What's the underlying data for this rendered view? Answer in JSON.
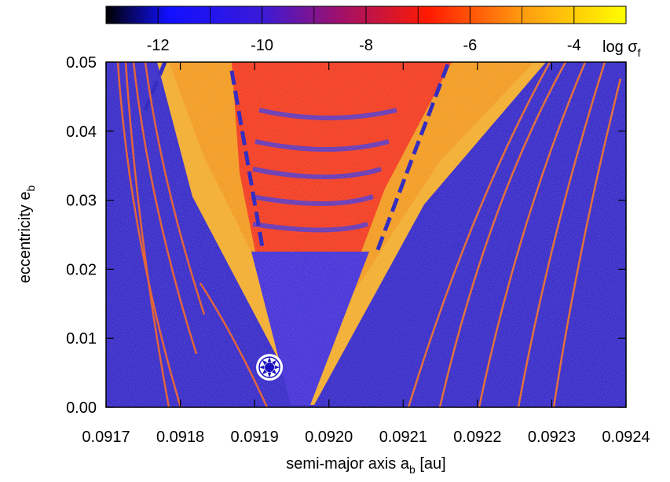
{
  "chart_data": {
    "type": "heatmap",
    "title": "",
    "xlabel": "semi-major axis a",
    "xlabel_sub": "b",
    "xlabel_unit": " [au]",
    "ylabel": "eccentricity e",
    "ylabel_sub": "b",
    "xlim": [
      0.0917,
      0.0924
    ],
    "ylim": [
      0.0,
      0.05
    ],
    "x_ticks": [
      "0.0917",
      "0.0918",
      "0.0919",
      "0.0920",
      "0.0921",
      "0.0922",
      "0.0923",
      "0.0924"
    ],
    "y_ticks": [
      "0.00",
      "0.01",
      "0.02",
      "0.03",
      "0.04",
      "0.05"
    ],
    "colorbar": {
      "label": "log σ",
      "label_sub": "f",
      "range": [
        -13,
        -3
      ],
      "ticks": [
        "-12",
        "-10",
        "-8",
        "-6",
        "-4"
      ],
      "tick_values": [
        -12,
        -10,
        -8,
        -6,
        -4
      ],
      "colors": [
        "#000000",
        "#0000ff",
        "#ff0000",
        "#ffff00"
      ]
    },
    "marker": {
      "x": 0.09192,
      "y": 0.0058,
      "type": "planet-symbol"
    },
    "regions": [
      {
        "name": "chaotic-v-wedge",
        "level": -5
      },
      {
        "name": "inner-resonance-band",
        "level": -7.5
      },
      {
        "name": "background",
        "level": -10.5
      }
    ],
    "grid": false
  }
}
